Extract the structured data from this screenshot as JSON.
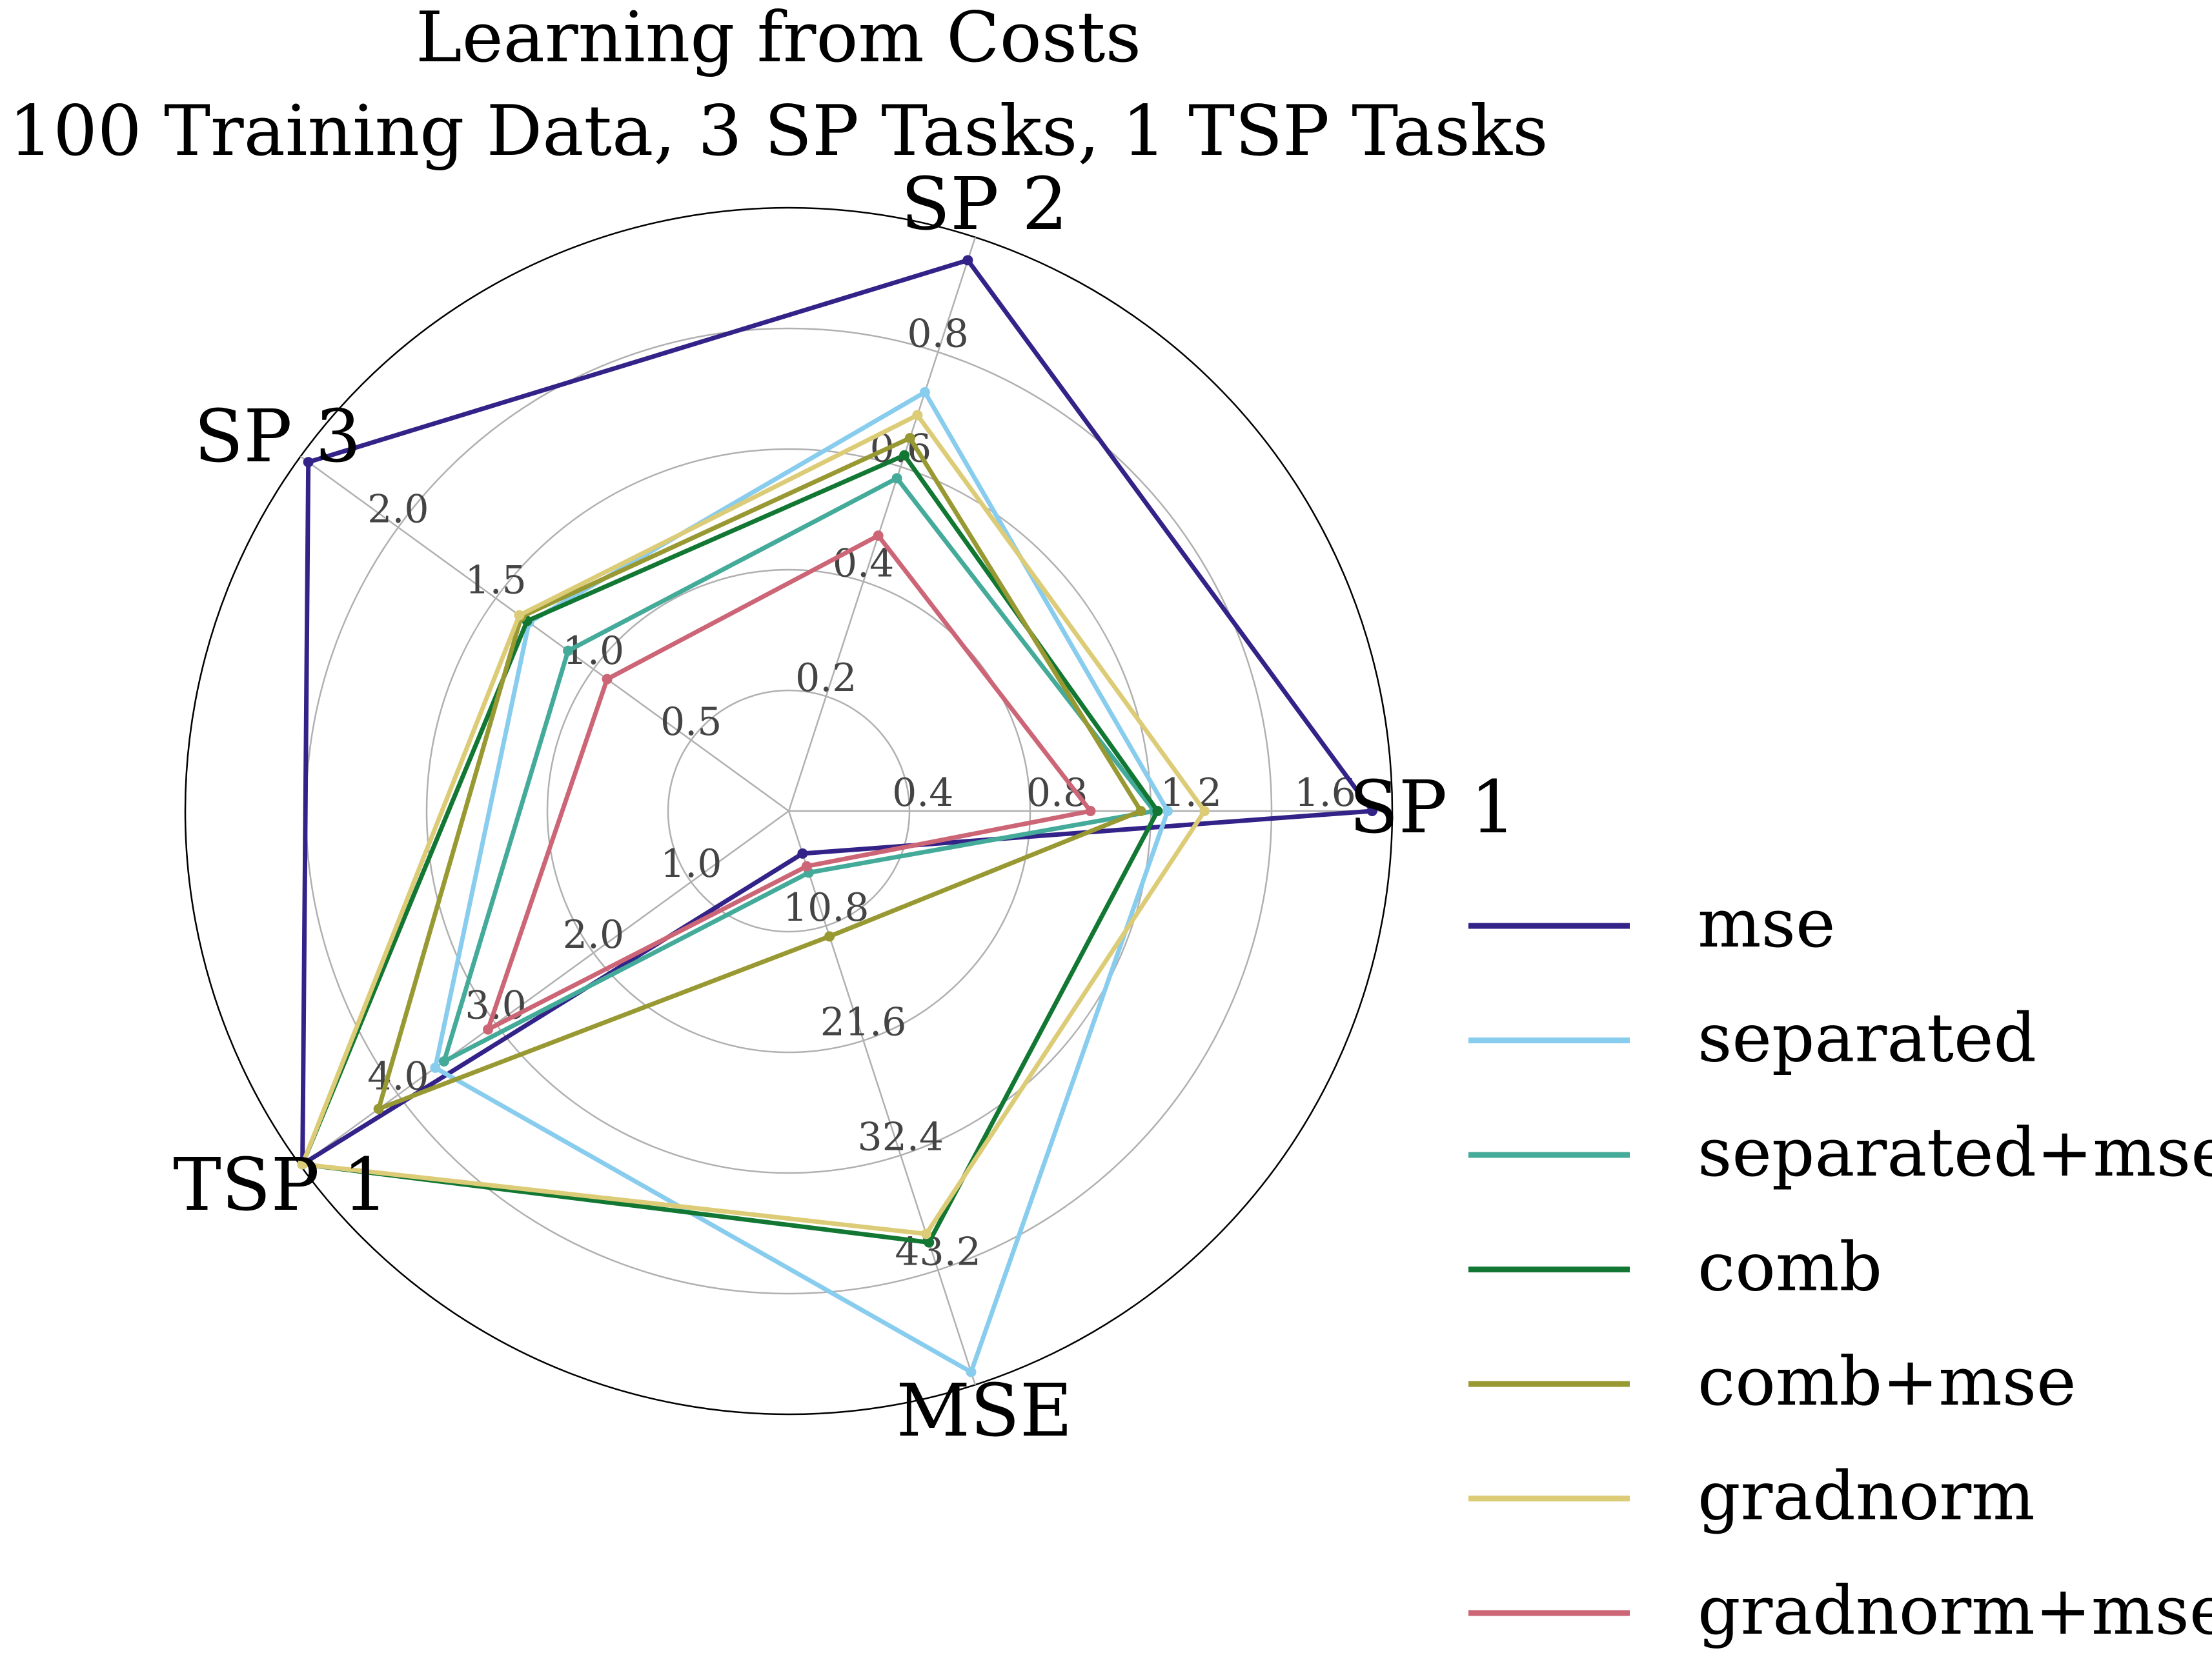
{
  "chart_data": {
    "type": "radar",
    "title": "Learning from Costs",
    "subtitle": "100 Training Data, 3 SP Tasks, 1 TSP Tasks",
    "axes": [
      {
        "name": "SP 1",
        "max": 1.8,
        "ticks": [
          0.4,
          0.8,
          1.2,
          1.6
        ],
        "tick_labels": [
          "0.4",
          "0.8",
          "1.2",
          "1.6"
        ]
      },
      {
        "name": "SP 2",
        "max": 1.0,
        "ticks": [
          0.2,
          0.4,
          0.6,
          0.8
        ],
        "tick_labels": [
          "0.2",
          "0.4",
          "0.6",
          "0.8"
        ]
      },
      {
        "name": "SP 3",
        "max": 2.5,
        "ticks": [
          0.5,
          1.0,
          1.5,
          2.0
        ],
        "tick_labels": [
          "0.5",
          "1.0",
          "1.5",
          "2.0"
        ]
      },
      {
        "name": "TSP 1",
        "max": 5.0,
        "ticks": [
          1.0,
          2.0,
          3.0,
          4.0
        ],
        "tick_labels": [
          "1.0",
          "2.0",
          "3.0",
          "4.0"
        ]
      },
      {
        "name": "MSE",
        "max": 54.0,
        "ticks": [
          10.8,
          21.6,
          32.4,
          43.2
        ],
        "tick_labels": [
          "10.8",
          "21.6",
          "32.4",
          "43.2"
        ]
      }
    ],
    "series": [
      {
        "name": "mse",
        "color": "#332288",
        "values": [
          1.74,
          0.96,
          2.46,
          4.98,
          4.0
        ]
      },
      {
        "name": "separated",
        "color": "#88CCEE",
        "values": [
          1.13,
          0.73,
          1.33,
          3.62,
          52.8
        ]
      },
      {
        "name": "separated+mse",
        "color": "#44AA99",
        "values": [
          1.09,
          0.58,
          1.13,
          3.53,
          5.8
        ]
      },
      {
        "name": "comb",
        "color": "#117733",
        "values": [
          1.1,
          0.62,
          1.34,
          4.98,
          40.6
        ]
      },
      {
        "name": "comb+mse",
        "color": "#999933",
        "values": [
          1.05,
          0.65,
          1.37,
          4.2,
          11.8
        ]
      },
      {
        "name": "gradnorm",
        "color": "#DDCC77",
        "values": [
          1.24,
          0.69,
          1.38,
          4.98,
          39.8
        ]
      },
      {
        "name": "gradnorm+mse",
        "color": "#CC6677",
        "values": [
          0.9,
          0.48,
          0.93,
          3.08,
          5.2
        ]
      }
    ],
    "grid": true,
    "legend_position": "right"
  }
}
